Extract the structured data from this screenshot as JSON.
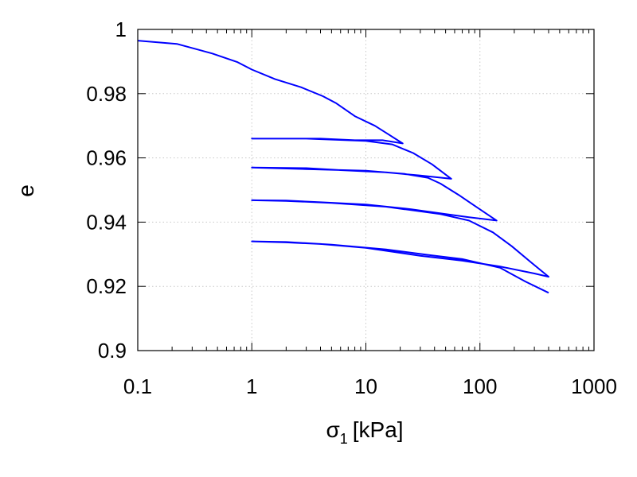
{
  "chart_data": {
    "type": "line",
    "xlabel_symbol": "σ",
    "xlabel_subscript": "1",
    "xlabel_unit": "[kPa]",
    "ylabel": "e",
    "xscale": "log",
    "xlim": [
      0.1,
      1000
    ],
    "ylim": [
      0.9,
      1.0
    ],
    "grid": true,
    "line_color": "#0000ff",
    "x_ticks": [
      0.1,
      1,
      10,
      100,
      1000
    ],
    "x_tick_labels": [
      "0.1",
      "1",
      "10",
      "100",
      "1000"
    ],
    "y_ticks": [
      0.9,
      0.92,
      0.94,
      0.96,
      0.98,
      1.0
    ],
    "y_tick_labels": [
      "0.9",
      "0.92",
      "0.94",
      "0.96",
      "0.98",
      "1"
    ],
    "series": [
      {
        "points": [
          [
            0.1,
            0.9965
          ],
          [
            0.22,
            0.9955
          ],
          [
            0.45,
            0.9925
          ],
          [
            0.75,
            0.9898
          ],
          [
            1.0,
            0.9875
          ],
          [
            1.6,
            0.9845
          ],
          [
            2.7,
            0.982
          ],
          [
            4.2,
            0.9792
          ],
          [
            5.5,
            0.977
          ],
          [
            8.0,
            0.973
          ],
          [
            12,
            0.97
          ],
          [
            15.5,
            0.9675
          ],
          [
            21,
            0.9645
          ],
          [
            14,
            0.9655
          ],
          [
            8,
            0.9655
          ],
          [
            4,
            0.966
          ],
          [
            2,
            0.966
          ],
          [
            1,
            0.966
          ],
          [
            3,
            0.966
          ],
          [
            10,
            0.9653
          ],
          [
            17,
            0.9642
          ],
          [
            26,
            0.9615
          ],
          [
            38,
            0.958
          ],
          [
            56,
            0.9535
          ],
          [
            30,
            0.9545
          ],
          [
            15,
            0.9555
          ],
          [
            6,
            0.9562
          ],
          [
            3,
            0.9568
          ],
          [
            1,
            0.957
          ],
          [
            3,
            0.9565
          ],
          [
            10,
            0.956
          ],
          [
            22,
            0.955
          ],
          [
            35,
            0.9538
          ],
          [
            45,
            0.952
          ],
          [
            65,
            0.9485
          ],
          [
            95,
            0.9445
          ],
          [
            140,
            0.9405
          ],
          [
            80,
            0.9415
          ],
          [
            50,
            0.9425
          ],
          [
            25,
            0.944
          ],
          [
            10,
            0.9455
          ],
          [
            4,
            0.9462
          ],
          [
            2,
            0.9467
          ],
          [
            1,
            0.9468
          ],
          [
            2,
            0.9466
          ],
          [
            5,
            0.946
          ],
          [
            15,
            0.9448
          ],
          [
            45,
            0.9425
          ],
          [
            80,
            0.9405
          ],
          [
            130,
            0.9368
          ],
          [
            190,
            0.9325
          ],
          [
            280,
            0.9275
          ],
          [
            400,
            0.923
          ],
          [
            300,
            0.924
          ],
          [
            150,
            0.9262
          ],
          [
            70,
            0.928
          ],
          [
            30,
            0.9295
          ],
          [
            10,
            0.932
          ],
          [
            4,
            0.9332
          ],
          [
            2,
            0.9337
          ],
          [
            1,
            0.934
          ],
          [
            2,
            0.9338
          ],
          [
            5,
            0.933
          ],
          [
            15,
            0.9315
          ],
          [
            35,
            0.9298
          ],
          [
            70,
            0.9285
          ],
          [
            150,
            0.9258
          ],
          [
            250,
            0.9215
          ],
          [
            400,
            0.918
          ]
        ]
      }
    ]
  }
}
